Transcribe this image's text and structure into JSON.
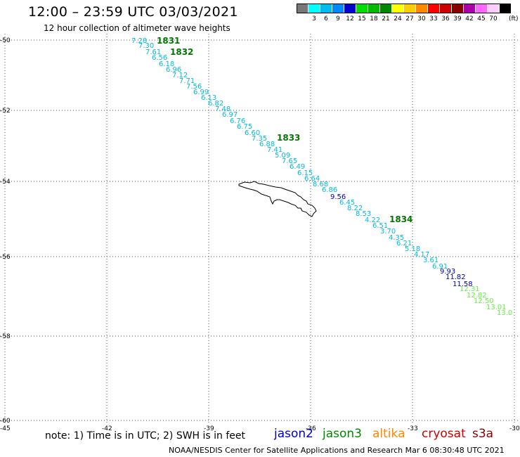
{
  "header": {
    "title": "12:00 – 23:59 UTC 03/03/2021",
    "subtitle": "12 hour collection of altimeter wave heights"
  },
  "legend": {
    "unit": "(ft)",
    "bins": [
      {
        "color": "#777777",
        "label": ""
      },
      {
        "color": "#00ffff",
        "label": "3"
      },
      {
        "color": "#00bbee",
        "label": "6"
      },
      {
        "color": "#0088ff",
        "label": "9"
      },
      {
        "color": "#0000cc",
        "label": "12"
      },
      {
        "color": "#00dd00",
        "label": "15"
      },
      {
        "color": "#00bb00",
        "label": "18"
      },
      {
        "color": "#008800",
        "label": "21"
      },
      {
        "color": "#ffff00",
        "label": "24"
      },
      {
        "color": "#ffcc00",
        "label": "27"
      },
      {
        "color": "#ff8800",
        "label": "30"
      },
      {
        "color": "#ff0000",
        "label": "33"
      },
      {
        "color": "#cc0000",
        "label": "36"
      },
      {
        "color": "#880000",
        "label": "39"
      },
      {
        "color": "#aa00aa",
        "label": "42"
      },
      {
        "color": "#ff66ff",
        "label": "45"
      },
      {
        "color": "#ffccff",
        "label": "70"
      },
      {
        "color": "#000000",
        "label": ""
      }
    ]
  },
  "axes": {
    "lat_labels": [
      "-50",
      "-52",
      "-54",
      "-56",
      "-58",
      "-60"
    ],
    "lon_labels": [
      "-45",
      "-42",
      "-39",
      "-36",
      "-33",
      "-30"
    ]
  },
  "passes": [
    {
      "label": "1831",
      "color": "#007700"
    },
    {
      "label": "1832",
      "color": "#007700"
    },
    {
      "label": "1833",
      "color": "#007700"
    },
    {
      "label": "1834",
      "color": "#007700"
    }
  ],
  "observations": [
    {
      "text": "7.28",
      "color": "#00bbdd"
    },
    {
      "text": "7.30",
      "color": "#00bbdd"
    },
    {
      "text": "7.61",
      "color": "#00bbdd"
    },
    {
      "text": "6.56",
      "color": "#00bbdd"
    },
    {
      "text": "6.18",
      "color": "#00bbdd"
    },
    {
      "text": "6.96",
      "color": "#00bbdd"
    },
    {
      "text": "7.12",
      "color": "#00bbdd"
    },
    {
      "text": "7.71",
      "color": "#00bbdd"
    },
    {
      "text": "7.56",
      "color": "#00bbdd"
    },
    {
      "text": "6.99",
      "color": "#00bbdd"
    },
    {
      "text": "6.13",
      "color": "#00bbdd"
    },
    {
      "text": "6.82",
      "color": "#00bbdd"
    },
    {
      "text": "7.48",
      "color": "#00bbdd"
    },
    {
      "text": "6.97",
      "color": "#00bbdd"
    },
    {
      "text": "6.76",
      "color": "#00bbdd"
    },
    {
      "text": "6.75",
      "color": "#00bbdd"
    },
    {
      "text": "6.60",
      "color": "#00bbdd"
    },
    {
      "text": "7.35",
      "color": "#00bbdd"
    },
    {
      "text": "6.88",
      "color": "#00bbdd"
    },
    {
      "text": "7.41",
      "color": "#00bbdd"
    },
    {
      "text": "5.09",
      "color": "#00bbdd"
    },
    {
      "text": "7.65",
      "color": "#00bbdd"
    },
    {
      "text": "6.49",
      "color": "#00bbdd"
    },
    {
      "text": "6.15",
      "color": "#00bbdd"
    },
    {
      "text": "6.64",
      "color": "#00bbdd"
    },
    {
      "text": "8.68",
      "color": "#00bbdd"
    },
    {
      "text": "6.86",
      "color": "#00bbdd"
    },
    {
      "text": "9.56",
      "color": "#0000aa"
    },
    {
      "text": "6.45",
      "color": "#00bbdd"
    },
    {
      "text": "8.22",
      "color": "#00bbdd"
    },
    {
      "text": "8.53",
      "color": "#00bbdd"
    },
    {
      "text": "4.22",
      "color": "#00bbdd"
    },
    {
      "text": "6.51",
      "color": "#00bbdd"
    },
    {
      "text": "3.70",
      "color": "#00bbdd"
    },
    {
      "text": "4.35",
      "color": "#00bbdd"
    },
    {
      "text": "6.21",
      "color": "#00bbdd"
    },
    {
      "text": "5.18",
      "color": "#00bbdd"
    },
    {
      "text": "4.17",
      "color": "#00bbdd"
    },
    {
      "text": "3.61",
      "color": "#00bbdd"
    },
    {
      "text": "6.91",
      "color": "#00bbdd"
    },
    {
      "text": "9.93",
      "color": "#0000aa"
    },
    {
      "text": "11.82",
      "color": "#0000aa"
    },
    {
      "text": "11.58",
      "color": "#0000aa"
    },
    {
      "text": "12.31",
      "color": "#66ee44"
    },
    {
      "text": "12.82",
      "color": "#66ee44"
    },
    {
      "text": "12.50",
      "color": "#66ee44"
    },
    {
      "text": "13.01",
      "color": "#66ee44"
    },
    {
      "text": "13.0",
      "color": "#66ee44"
    }
  ],
  "notes": {
    "text": "note: 1) Time is in UTC; 2) SWH is in feet",
    "satellites": [
      {
        "name": "jason2",
        "color": "#0000cc"
      },
      {
        "name": "jason3",
        "color": "#008800"
      },
      {
        "name": "altika",
        "color": "#ff8800"
      },
      {
        "name": "cryosat",
        "color": "#cc0000"
      },
      {
        "name": "s3a",
        "color": "#880000"
      }
    ]
  },
  "footer": "NOAA/NESDIS Center for Satellite Applications and Research   Mar  6 08:30:48 UTC 2021"
}
